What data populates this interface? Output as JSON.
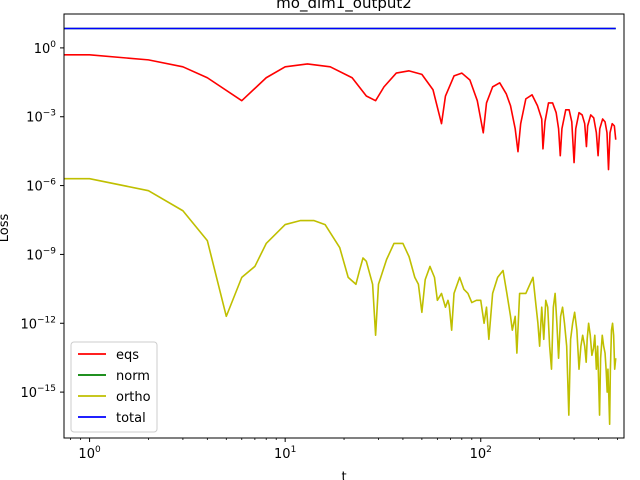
{
  "chart_data": {
    "type": "line",
    "title": "mo_dim1_output2",
    "xlabel": "t",
    "ylabel": "Loss",
    "xscale": "log",
    "yscale": "log",
    "xlim": [
      0.74,
      540
    ],
    "ylim": [
      1e-17,
      30
    ],
    "grid": false,
    "legend_position": "lower-left",
    "x_ticks": [
      {
        "value": 1,
        "label": "10",
        "exp": "0"
      },
      {
        "value": 10,
        "label": "10",
        "exp": "1"
      },
      {
        "value": 100,
        "label": "10",
        "exp": "2"
      }
    ],
    "y_ticks": [
      {
        "value": 1,
        "label": "10",
        "exp": "0"
      },
      {
        "value": 0.001,
        "label": "10",
        "exp": "−3"
      },
      {
        "value": 1e-06,
        "label": "10",
        "exp": "−6"
      },
      {
        "value": 1e-09,
        "label": "10",
        "exp": "−9"
      },
      {
        "value": 1e-12,
        "label": "10",
        "exp": "−12"
      },
      {
        "value": 1e-15,
        "label": "10",
        "exp": "−15"
      }
    ],
    "series": [
      {
        "name": "eqs",
        "color": "#ff0000",
        "points": [
          [
            0.74,
            0.5
          ],
          [
            1,
            0.5
          ],
          [
            2,
            0.3
          ],
          [
            3,
            0.15
          ],
          [
            4,
            0.05
          ],
          [
            6,
            0.005
          ],
          [
            8,
            0.05
          ],
          [
            10,
            0.15
          ],
          [
            13,
            0.2
          ],
          [
            17,
            0.15
          ],
          [
            22,
            0.05
          ],
          [
            26,
            0.008
          ],
          [
            29,
            0.005
          ],
          [
            32,
            0.02
          ],
          [
            37,
            0.08
          ],
          [
            43,
            0.1
          ],
          [
            50,
            0.07
          ],
          [
            57,
            0.015
          ],
          [
            63,
            0.0005
          ],
          [
            66,
            0.008
          ],
          [
            73,
            0.06
          ],
          [
            80,
            0.08
          ],
          [
            88,
            0.04
          ],
          [
            96,
            0.005
          ],
          [
            103,
            0.0002
          ],
          [
            107,
            0.004
          ],
          [
            115,
            0.02
          ],
          [
            125,
            0.03
          ],
          [
            135,
            0.01
          ],
          [
            142,
            0.003
          ],
          [
            150,
            0.0003
          ],
          [
            155,
            3e-05
          ],
          [
            160,
            0.0005
          ],
          [
            170,
            0.006
          ],
          [
            183,
            0.009
          ],
          [
            195,
            0.003
          ],
          [
            205,
            0.0008
          ],
          [
            208,
            4e-05
          ],
          [
            213,
            0.0006
          ],
          [
            222,
            0.004
          ],
          [
            233,
            0.004
          ],
          [
            243,
            0.0015
          ],
          [
            250,
            0.0003
          ],
          [
            255,
            2e-05
          ],
          [
            260,
            0.0003
          ],
          [
            272,
            0.002
          ],
          [
            283,
            0.002
          ],
          [
            292,
            0.0006
          ],
          [
            300,
            1e-05
          ],
          [
            306,
            0.0003
          ],
          [
            318,
            0.0015
          ],
          [
            330,
            0.0012
          ],
          [
            340,
            0.0005
          ],
          [
            347,
            5e-05
          ],
          [
            352,
            0.0004
          ],
          [
            365,
            0.0012
          ],
          [
            378,
            0.0009
          ],
          [
            390,
            0.0002
          ],
          [
            398,
            2e-05
          ],
          [
            406,
            0.0003
          ],
          [
            420,
            0.0008
          ],
          [
            432,
            0.0006
          ],
          [
            442,
            0.0002
          ],
          [
            450,
            5e-06
          ],
          [
            458,
            0.0002
          ],
          [
            470,
            0.0005
          ],
          [
            482,
            0.0004
          ],
          [
            490,
            0.0001
          ]
        ]
      },
      {
        "name": "norm",
        "color": "#008000",
        "points": [
          [
            0.74,
            7
          ],
          [
            490,
            7
          ]
        ]
      },
      {
        "name": "ortho",
        "color": "#bfbf00",
        "points": [
          [
            0.74,
            2e-06
          ],
          [
            1,
            2e-06
          ],
          [
            2,
            6e-07
          ],
          [
            3,
            8e-08
          ],
          [
            4,
            4e-09
          ],
          [
            5,
            2e-12
          ],
          [
            6,
            1e-10
          ],
          [
            7,
            3e-10
          ],
          [
            8,
            3e-09
          ],
          [
            10,
            2e-08
          ],
          [
            12,
            3e-08
          ],
          [
            14,
            3e-08
          ],
          [
            16,
            2e-08
          ],
          [
            19,
            2e-09
          ],
          [
            21,
            1e-10
          ],
          [
            23,
            5e-11
          ],
          [
            24,
            2e-10
          ],
          [
            25,
            7e-10
          ],
          [
            26,
            5e-10
          ],
          [
            28,
            5e-11
          ],
          [
            29,
            3e-13
          ],
          [
            30,
            5e-11
          ],
          [
            33,
            6e-10
          ],
          [
            36,
            3e-09
          ],
          [
            40,
            3e-09
          ],
          [
            43,
            8e-10
          ],
          [
            46,
            1e-10
          ],
          [
            48,
            5e-11
          ],
          [
            50,
            3e-12
          ],
          [
            52,
            8e-11
          ],
          [
            55,
            3e-10
          ],
          [
            58,
            1e-10
          ],
          [
            60,
            1e-11
          ],
          [
            63,
            2e-11
          ],
          [
            66,
            5e-12
          ],
          [
            68,
            1e-11
          ],
          [
            69,
            6e-12
          ],
          [
            71,
            5e-13
          ],
          [
            73,
            2e-11
          ],
          [
            78,
            1e-10
          ],
          [
            82,
            3e-11
          ],
          [
            86,
            2e-11
          ],
          [
            90,
            8e-12
          ],
          [
            95,
            1e-11
          ],
          [
            100,
            1e-11
          ],
          [
            104,
            1e-12
          ],
          [
            107,
            5e-12
          ],
          [
            110,
            2e-13
          ],
          [
            115,
            2e-11
          ],
          [
            122,
            1e-10
          ],
          [
            130,
            2e-10
          ],
          [
            136,
            2e-11
          ],
          [
            142,
            2e-12
          ],
          [
            145,
            5e-13
          ],
          [
            150,
            2e-12
          ],
          [
            153,
            5e-14
          ],
          [
            158,
            2e-11
          ],
          [
            170,
            2e-11
          ],
          [
            185,
            1e-10
          ],
          [
            192,
            5e-12
          ],
          [
            196,
            1e-12
          ],
          [
            200,
            1e-13
          ],
          [
            205,
            5e-12
          ],
          [
            210,
            2e-13
          ],
          [
            215,
            1e-11
          ],
          [
            220,
            5e-12
          ],
          [
            225,
            1e-13
          ],
          [
            230,
            1e-14
          ],
          [
            235,
            5e-12
          ],
          [
            240,
            2e-11
          ],
          [
            245,
            1e-12
          ],
          [
            250,
            3e-14
          ],
          [
            256,
            2e-12
          ],
          [
            262,
            5e-12
          ],
          [
            268,
            1e-12
          ],
          [
            275,
            1e-13
          ],
          [
            282,
            1e-16
          ],
          [
            288,
            2e-13
          ],
          [
            295,
            1e-12
          ],
          [
            302,
            3e-12
          ],
          [
            310,
            5e-13
          ],
          [
            318,
            1e-14
          ],
          [
            325,
            1e-13
          ],
          [
            332,
            3e-13
          ],
          [
            340,
            1e-13
          ],
          [
            346,
            2e-14
          ],
          [
            350,
            2e-13
          ],
          [
            356,
            1e-12
          ],
          [
            363,
            3e-13
          ],
          [
            370,
            4e-14
          ],
          [
            377,
            8e-14
          ],
          [
            383,
            3e-13
          ],
          [
            390,
            1e-14
          ],
          [
            396,
            1e-13
          ],
          [
            402,
            1e-15
          ],
          [
            405,
            1e-16
          ],
          [
            410,
            3e-14
          ],
          [
            418,
            3e-13
          ],
          [
            425,
            1e-13
          ],
          [
            432,
            5e-14
          ],
          [
            438,
            8e-15
          ],
          [
            443,
            1e-15
          ],
          [
            447,
            1e-14
          ],
          [
            452,
            5e-16
          ],
          [
            456,
            4e-17
          ],
          [
            460,
            1e-14
          ],
          [
            466,
            5e-13
          ],
          [
            472,
            1e-12
          ],
          [
            478,
            3e-13
          ],
          [
            484,
            1e-14
          ],
          [
            490,
            3e-14
          ]
        ]
      },
      {
        "name": "total",
        "color": "#0000ff",
        "points": [
          [
            0.74,
            7
          ],
          [
            490,
            7
          ]
        ]
      }
    ]
  }
}
